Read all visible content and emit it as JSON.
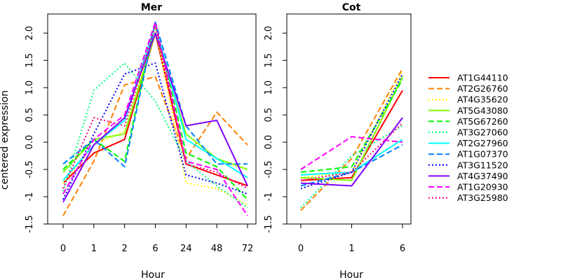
{
  "chart_data": [
    {
      "type": "line",
      "title": "Mer",
      "xlabel": "Hour",
      "ylabel": "centered expression",
      "categories": [
        "0",
        "1",
        "2",
        "6",
        "24",
        "48",
        "72"
      ],
      "yticks": [
        "-1.5",
        "-1",
        "-0.5",
        "0.0",
        "0.5",
        "1.0",
        "1.5",
        "2.0"
      ],
      "ylim": [
        -1.5,
        2.35
      ],
      "series": [
        {
          "name": "AT1G44110",
          "values": [
            -0.75,
            -0.2,
            0.05,
            2.0,
            -0.4,
            -0.6,
            -0.8
          ]
        },
        {
          "name": "AT2G26760",
          "values": [
            -1.35,
            -0.35,
            1.05,
            1.2,
            -0.3,
            0.55,
            -0.05
          ]
        },
        {
          "name": "AT4G35620",
          "values": [
            -0.75,
            -0.05,
            0.2,
            2.1,
            -0.75,
            -0.85,
            -1.15
          ]
        },
        {
          "name": "AT5G43080",
          "values": [
            -0.55,
            0.05,
            0.15,
            2.0,
            0.15,
            -0.3,
            -0.5
          ]
        },
        {
          "name": "AT5G67260",
          "values": [
            -0.5,
            0.05,
            -0.35,
            2.2,
            -0.2,
            -0.45,
            -1.05
          ]
        },
        {
          "name": "AT3G27060",
          "values": [
            -0.9,
            0.95,
            1.45,
            0.75,
            -0.35,
            -0.8,
            -1.2
          ]
        },
        {
          "name": "AT2G27960",
          "values": [
            -0.7,
            -0.05,
            0.4,
            2.15,
            0.05,
            -0.3,
            -0.65
          ]
        },
        {
          "name": "AT1G07370",
          "values": [
            -0.4,
            0.05,
            -0.45,
            2.2,
            0.3,
            -0.4,
            -0.4
          ]
        },
        {
          "name": "AT3G11520",
          "values": [
            -1.05,
            0.15,
            1.25,
            1.45,
            -0.6,
            -0.75,
            -0.95
          ]
        },
        {
          "name": "AT4G37490",
          "values": [
            -1.1,
            -0.05,
            0.45,
            2.0,
            0.3,
            0.4,
            -0.8
          ]
        },
        {
          "name": "AT1G20930",
          "values": [
            -0.95,
            0.05,
            0.5,
            2.2,
            -0.35,
            -0.5,
            -1.35
          ]
        },
        {
          "name": "AT3G25980",
          "values": [
            -0.85,
            0.45,
            0.3,
            2.15,
            -0.4,
            -0.55,
            -0.85
          ]
        }
      ]
    },
    {
      "type": "line",
      "title": "Cot",
      "xlabel": "Hour",
      "ylabel": "",
      "categories": [
        "0",
        "1",
        "6"
      ],
      "yticks": [
        "-1.5",
        "-1",
        "-0.5",
        "0.0",
        "0.5",
        "1.0",
        "1.5",
        "2.0"
      ],
      "ylim": [
        -1.5,
        2.35
      ],
      "series": [
        {
          "name": "AT1G44110",
          "values": [
            -0.7,
            -0.65,
            0.95
          ]
        },
        {
          "name": "AT2G26760",
          "values": [
            -1.25,
            -0.3,
            1.35
          ]
        },
        {
          "name": "AT4G35620",
          "values": [
            -0.65,
            -0.55,
            1.3
          ]
        },
        {
          "name": "AT5G43080",
          "values": [
            -0.65,
            -0.7,
            1.2
          ]
        },
        {
          "name": "AT5G67260",
          "values": [
            -0.55,
            -0.45,
            1.15
          ]
        },
        {
          "name": "AT3G27060",
          "values": [
            -1.2,
            -0.25,
            0.3
          ]
        },
        {
          "name": "AT2G27960",
          "values": [
            -0.6,
            -0.55,
            0.05
          ]
        },
        {
          "name": "AT1G07370",
          "values": [
            -0.8,
            -0.55,
            -0.05
          ]
        },
        {
          "name": "AT3G11520",
          "values": [
            -0.85,
            -0.55,
            1.25
          ]
        },
        {
          "name": "AT4G37490",
          "values": [
            -0.75,
            -0.8,
            0.45
          ]
        },
        {
          "name": "AT1G20930",
          "values": [
            -0.5,
            0.1,
            0.0
          ]
        },
        {
          "name": "AT3G25980",
          "values": [
            -0.7,
            -0.55,
            0.35
          ]
        }
      ]
    }
  ],
  "legend": {
    "placement": "right",
    "entries": [
      {
        "name": "AT1G44110",
        "color": "#FF0000",
        "dash": "solid"
      },
      {
        "name": "AT2G26760",
        "color": "#FF8000",
        "dash": "dashed"
      },
      {
        "name": "AT4G35620",
        "color": "#FFFF00",
        "dash": "dotted"
      },
      {
        "name": "AT5G43080",
        "color": "#80FF00",
        "dash": "solid"
      },
      {
        "name": "AT5G67260",
        "color": "#00FF00",
        "dash": "dashed"
      },
      {
        "name": "AT3G27060",
        "color": "#00FF80",
        "dash": "dotted"
      },
      {
        "name": "AT2G27960",
        "color": "#00FFFF",
        "dash": "solid"
      },
      {
        "name": "AT1G07370",
        "color": "#0080FF",
        "dash": "dashed"
      },
      {
        "name": "AT3G11520",
        "color": "#0000FF",
        "dash": "dotted"
      },
      {
        "name": "AT4G37490",
        "color": "#8000FF",
        "dash": "solid"
      },
      {
        "name": "AT1G20930",
        "color": "#FF00FF",
        "dash": "dashed"
      },
      {
        "name": "AT3G25980",
        "color": "#FF0080",
        "dash": "dotted"
      }
    ]
  }
}
